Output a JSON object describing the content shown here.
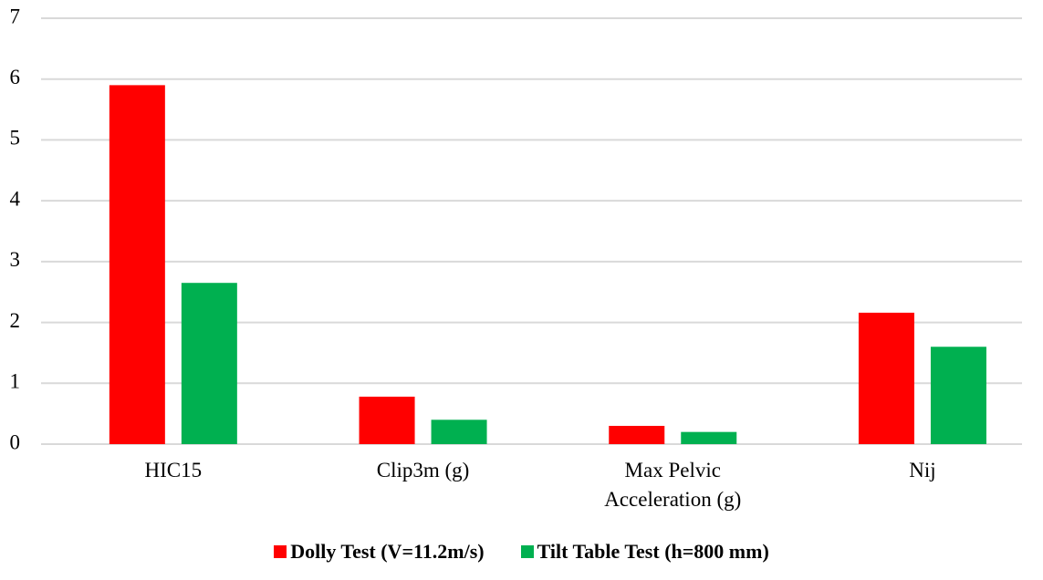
{
  "chart_data": {
    "type": "bar",
    "categories": [
      "HIC15",
      "Clip3m (g)",
      "Max Pelvic Acceleration (g)",
      "Nij"
    ],
    "series": [
      {
        "name": "Dolly Test (V=11.2m/s)",
        "color": "#ff0000",
        "values": [
          5.9,
          0.78,
          0.3,
          2.16
        ]
      },
      {
        "name": "Tilt Table Test (h=800 mm)",
        "color": "#00b050",
        "values": [
          2.65,
          0.4,
          0.2,
          1.6
        ]
      }
    ],
    "ylim": [
      0,
      7
    ],
    "yticks": [
      0,
      1,
      2,
      3,
      4,
      5,
      6,
      7
    ],
    "grid": true,
    "legend": "bottom"
  }
}
